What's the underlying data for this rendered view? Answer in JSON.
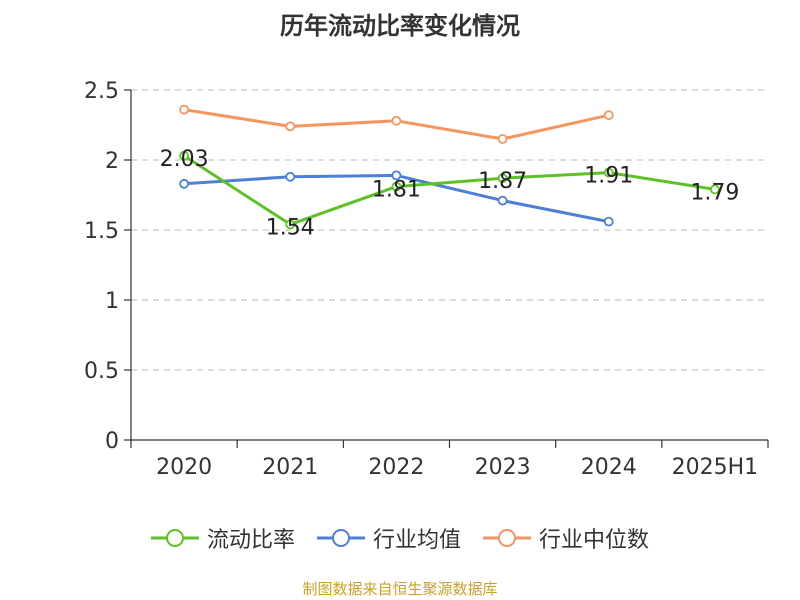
{
  "chart_data": {
    "type": "line",
    "title": "历年流动比率变化情况",
    "categories": [
      "2020",
      "2021",
      "2022",
      "2023",
      "2024",
      "2025H1"
    ],
    "ylim": [
      0,
      2.5
    ],
    "yticks": [
      "0",
      "0.5",
      "1",
      "1.5",
      "2",
      "2.5"
    ],
    "grid": true,
    "legend_position": "bottom",
    "series": [
      {
        "name": "流动比率",
        "color": "#5ec226",
        "values": [
          2.03,
          1.54,
          1.81,
          1.87,
          1.91,
          1.79
        ],
        "labels": [
          "2.03",
          "1.54",
          "1.81",
          "1.87",
          "1.91",
          "1.79"
        ]
      },
      {
        "name": "行业均值",
        "color": "#4e7fd8",
        "values": [
          1.83,
          1.88,
          1.89,
          1.71,
          1.56,
          null
        ]
      },
      {
        "name": "行业中位数",
        "color": "#f59560",
        "values": [
          2.36,
          2.24,
          2.28,
          2.15,
          2.32,
          null
        ]
      }
    ]
  },
  "footer": {
    "source": "制图数据来自恒生聚源数据库"
  }
}
